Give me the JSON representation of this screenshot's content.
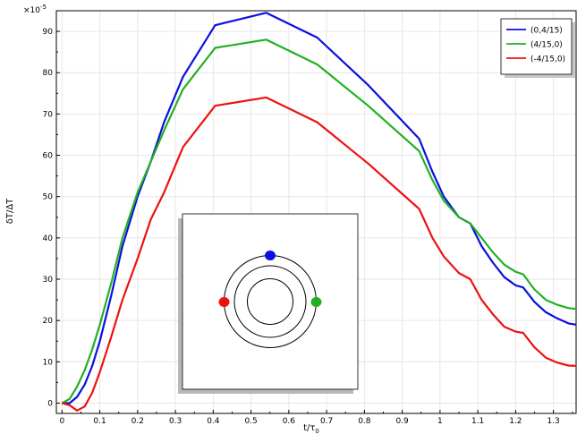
{
  "chart_data": {
    "type": "line",
    "xlabel": "t/τ",
    "xlabel_sub": "0",
    "ylabel": "δT/ΔT",
    "y_multiplier": "×10",
    "y_multiplier_exp": "-5",
    "xlim": [
      -0.015,
      1.36
    ],
    "ylim": [
      -2.5,
      95
    ],
    "grid": true,
    "legend_position": "top-right",
    "x_ticks": [
      0,
      0.1,
      0.2,
      0.3,
      0.4,
      0.5,
      0.6,
      0.7,
      0.8,
      0.9,
      1.0,
      1.1,
      1.2,
      1.3
    ],
    "x_tick_labels": [
      "0",
      "0.1",
      "0.2",
      "0.3",
      "0.4",
      "0.5",
      "0.6",
      "0.7",
      "0.8",
      "0.9",
      "1",
      "1.1",
      "1.2",
      "1.3"
    ],
    "y_ticks": [
      0,
      10,
      20,
      30,
      40,
      50,
      60,
      70,
      80,
      90
    ],
    "y_tick_labels": [
      "0",
      "10",
      "20",
      "30",
      "40",
      "50",
      "60",
      "70",
      "80",
      "90"
    ],
    "series": [
      {
        "name": "(0,4/15)",
        "color": "#0a10e0",
        "x": [
          0,
          0.02,
          0.04,
          0.06,
          0.08,
          0.1,
          0.13,
          0.16,
          0.2,
          0.235,
          0.27,
          0.32,
          0.405,
          0.54,
          0.675,
          0.81,
          0.945,
          0.98,
          1.01,
          1.05,
          1.08,
          1.11,
          1.14,
          1.17,
          1.2,
          1.22,
          1.25,
          1.28,
          1.31,
          1.34,
          1.36
        ],
        "y": [
          0,
          0,
          1.5,
          4.5,
          9,
          15,
          26,
          38,
          50,
          58.5,
          68,
          79,
          91.5,
          94.5,
          88.5,
          77,
          64,
          56,
          50,
          45,
          43.5,
          38,
          34,
          30.5,
          28.5,
          28,
          24.5,
          22,
          20.5,
          19.3,
          19
        ]
      },
      {
        "name": "(4/15,0)",
        "color": "#22b022",
        "x": [
          0,
          0.02,
          0.04,
          0.06,
          0.08,
          0.1,
          0.13,
          0.16,
          0.2,
          0.235,
          0.27,
          0.32,
          0.405,
          0.54,
          0.675,
          0.81,
          0.945,
          0.98,
          1.01,
          1.05,
          1.08,
          1.11,
          1.14,
          1.17,
          1.2,
          1.22,
          1.25,
          1.28,
          1.31,
          1.34,
          1.36
        ],
        "y": [
          0,
          1,
          4,
          8,
          13,
          19,
          29,
          40,
          51,
          58.5,
          66,
          76,
          86,
          88,
          82,
          72,
          61,
          54,
          49,
          45,
          43.5,
          40,
          36.5,
          33.5,
          31.8,
          31.2,
          27.5,
          25,
          23.8,
          23,
          22.8
        ]
      },
      {
        "name": "(-4/15,0)",
        "color": "#ee1111",
        "x": [
          0,
          0.02,
          0.04,
          0.06,
          0.08,
          0.1,
          0.13,
          0.16,
          0.2,
          0.235,
          0.27,
          0.32,
          0.405,
          0.54,
          0.675,
          0.81,
          0.945,
          0.98,
          1.01,
          1.05,
          1.08,
          1.11,
          1.14,
          1.17,
          1.2,
          1.22,
          1.25,
          1.28,
          1.31,
          1.34,
          1.36
        ],
        "y": [
          0,
          -0.5,
          -1.8,
          -0.8,
          2.5,
          7.5,
          16,
          25,
          35,
          44.5,
          51,
          62,
          72,
          74,
          68,
          58,
          47,
          40,
          35.5,
          31.5,
          30,
          25,
          21.5,
          18.5,
          17.3,
          17,
          13.5,
          11,
          9.8,
          9.1,
          9
        ]
      }
    ]
  },
  "inset": {
    "markers": [
      {
        "label": "blue-dot",
        "color": "#0a10e0"
      },
      {
        "label": "green-dot",
        "color": "#22b022"
      },
      {
        "label": "red-dot",
        "color": "#ee1111"
      }
    ]
  }
}
